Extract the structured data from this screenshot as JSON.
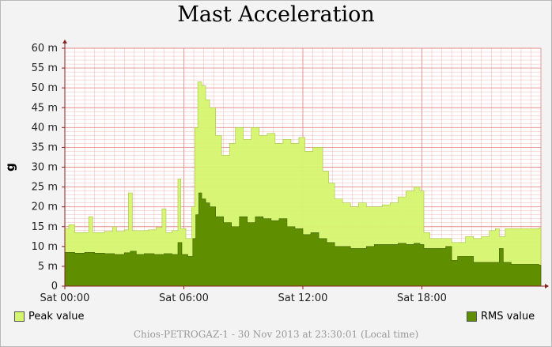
{
  "title": "Mast Acceleration",
  "footer": "Chios-PETROGAZ-1 - 30 Nov 2013 at 23:30:01 (Local time)",
  "colors": {
    "peak": "#d6f56e",
    "rms": "#5f8f00",
    "grid": "#e88080",
    "plot_bg": "#ffffff",
    "axis": "#8b2020"
  },
  "legend": {
    "peak_label": "Peak value",
    "peak_color": "#d6f56e",
    "rms_label": "RMS value",
    "rms_color": "#5f8f00"
  },
  "chart_data": {
    "type": "area",
    "title": "Mast Acceleration",
    "ylabel": "g",
    "xlabel": "",
    "ylim": [
      0,
      60
    ],
    "y_ticks": [
      0,
      5,
      10,
      15,
      20,
      25,
      30,
      35,
      40,
      45,
      50,
      55,
      60
    ],
    "y_tick_labels": [
      "0",
      "5 m",
      "10 m",
      "15 m",
      "20 m",
      "25 m",
      "30 m",
      "35 m",
      "40 m",
      "45 m",
      "50 m",
      "55 m",
      "60 m"
    ],
    "x_unit": "hours since Sat 00:00",
    "xlim": [
      0,
      24
    ],
    "x_ticks": [
      0,
      6,
      12,
      18
    ],
    "x_tick_labels": [
      "Sat 00:00",
      "Sat 06:00",
      "Sat 12:00",
      "Sat 18:00"
    ],
    "grid": true,
    "legend_position": "bottom",
    "series": [
      {
        "name": "Peak value",
        "color": "#d6f56e",
        "points": [
          [
            0,
            14.5
          ],
          [
            0.2,
            15.5
          ],
          [
            0.5,
            13.5
          ],
          [
            0.8,
            13.5
          ],
          [
            1.2,
            17.5
          ],
          [
            1.4,
            13.5
          ],
          [
            2.0,
            13.8
          ],
          [
            2.4,
            15.0
          ],
          [
            2.6,
            13.8
          ],
          [
            3.0,
            14.2
          ],
          [
            3.2,
            23.5
          ],
          [
            3.4,
            14.0
          ],
          [
            3.8,
            14.0
          ],
          [
            4.2,
            14.2
          ],
          [
            4.6,
            14.8
          ],
          [
            4.9,
            19.5
          ],
          [
            5.1,
            13.5
          ],
          [
            5.4,
            14.0
          ],
          [
            5.7,
            27.0
          ],
          [
            5.85,
            14.5
          ],
          [
            6.1,
            12.0
          ],
          [
            6.4,
            20.0
          ],
          [
            6.55,
            40.0
          ],
          [
            6.7,
            51.5
          ],
          [
            6.9,
            50.5
          ],
          [
            7.1,
            47.0
          ],
          [
            7.3,
            45.0
          ],
          [
            7.6,
            38.0
          ],
          [
            7.9,
            33.0
          ],
          [
            8.3,
            36.0
          ],
          [
            8.6,
            40.0
          ],
          [
            9.0,
            37.0
          ],
          [
            9.4,
            40.0
          ],
          [
            9.8,
            38.0
          ],
          [
            10.2,
            38.5
          ],
          [
            10.6,
            36.0
          ],
          [
            11.0,
            37.0
          ],
          [
            11.4,
            36.0
          ],
          [
            11.8,
            37.5
          ],
          [
            12.1,
            34.0
          ],
          [
            12.5,
            35.0
          ],
          [
            13.0,
            29.0
          ],
          [
            13.3,
            26.0
          ],
          [
            13.6,
            22.0
          ],
          [
            14.0,
            21.0
          ],
          [
            14.4,
            20.0
          ],
          [
            14.8,
            21.0
          ],
          [
            15.2,
            20.0
          ],
          [
            15.6,
            20.0
          ],
          [
            16.0,
            20.5
          ],
          [
            16.4,
            21.0
          ],
          [
            16.8,
            22.5
          ],
          [
            17.2,
            24.0
          ],
          [
            17.6,
            25.0
          ],
          [
            17.9,
            24.0
          ],
          [
            18.1,
            13.5
          ],
          [
            18.4,
            12.0
          ],
          [
            19.5,
            11.0
          ],
          [
            20.2,
            12.5
          ],
          [
            20.6,
            12.0
          ],
          [
            21.0,
            12.5
          ],
          [
            21.4,
            14.0
          ],
          [
            21.7,
            14.5
          ],
          [
            21.9,
            12.5
          ],
          [
            22.2,
            14.5
          ],
          [
            22.6,
            14.5
          ],
          [
            23.2,
            14.5
          ],
          [
            23.9,
            14.7
          ]
        ]
      },
      {
        "name": "RMS value",
        "color": "#5f8f00",
        "points": [
          [
            0,
            8.5
          ],
          [
            0.5,
            8.3
          ],
          [
            1.0,
            8.5
          ],
          [
            1.5,
            8.3
          ],
          [
            2.0,
            8.2
          ],
          [
            2.5,
            8.0
          ],
          [
            3.0,
            8.4
          ],
          [
            3.3,
            8.8
          ],
          [
            3.6,
            8.0
          ],
          [
            4.0,
            8.2
          ],
          [
            4.5,
            8.0
          ],
          [
            5.0,
            8.2
          ],
          [
            5.4,
            8.0
          ],
          [
            5.7,
            11.0
          ],
          [
            5.9,
            8.0
          ],
          [
            6.2,
            7.5
          ],
          [
            6.45,
            12.0
          ],
          [
            6.6,
            18.0
          ],
          [
            6.75,
            23.5
          ],
          [
            6.9,
            22.0
          ],
          [
            7.1,
            21.0
          ],
          [
            7.3,
            20.0
          ],
          [
            7.6,
            17.5
          ],
          [
            8.0,
            16.0
          ],
          [
            8.4,
            15.0
          ],
          [
            8.8,
            17.5
          ],
          [
            9.2,
            16.0
          ],
          [
            9.6,
            17.5
          ],
          [
            10.0,
            17.0
          ],
          [
            10.4,
            16.5
          ],
          [
            10.8,
            17.0
          ],
          [
            11.2,
            15.0
          ],
          [
            11.6,
            14.5
          ],
          [
            12.0,
            13.0
          ],
          [
            12.4,
            13.5
          ],
          [
            12.8,
            12.0
          ],
          [
            13.2,
            11.0
          ],
          [
            13.6,
            10.0
          ],
          [
            14.0,
            10.0
          ],
          [
            14.4,
            9.5
          ],
          [
            14.8,
            9.5
          ],
          [
            15.2,
            10.0
          ],
          [
            15.6,
            10.5
          ],
          [
            16.0,
            10.5
          ],
          [
            16.4,
            10.5
          ],
          [
            16.8,
            10.8
          ],
          [
            17.2,
            10.5
          ],
          [
            17.6,
            10.8
          ],
          [
            17.9,
            10.5
          ],
          [
            18.1,
            9.5
          ],
          [
            18.5,
            9.5
          ],
          [
            19.2,
            10.0
          ],
          [
            19.5,
            6.5
          ],
          [
            19.8,
            7.5
          ],
          [
            20.2,
            7.5
          ],
          [
            20.6,
            6.0
          ],
          [
            21.0,
            6.0
          ],
          [
            21.5,
            6.0
          ],
          [
            21.9,
            9.5
          ],
          [
            22.1,
            6.0
          ],
          [
            22.5,
            5.5
          ],
          [
            23.2,
            5.5
          ],
          [
            23.9,
            5.3
          ]
        ]
      }
    ]
  }
}
